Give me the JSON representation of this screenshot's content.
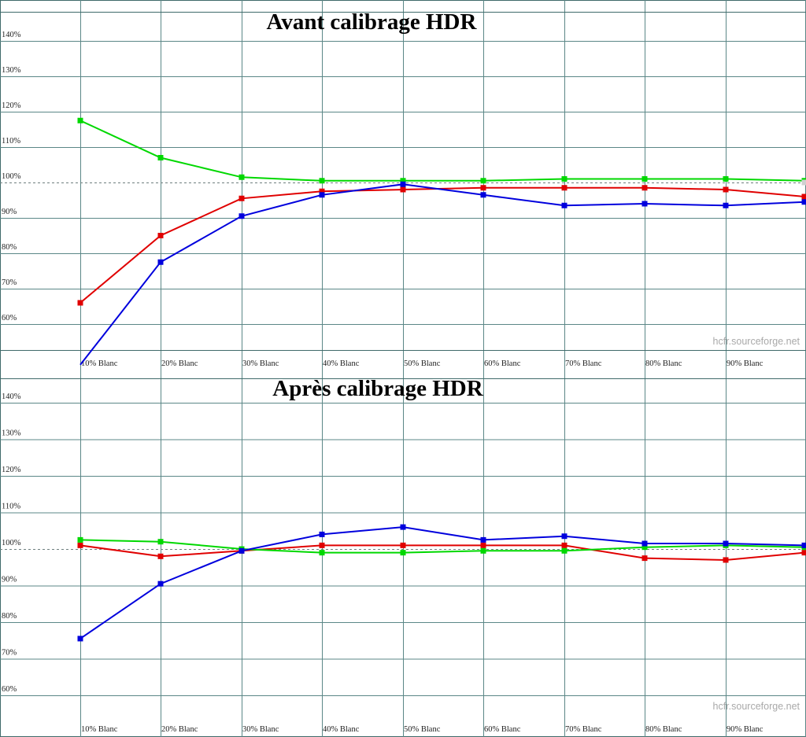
{
  "page": {
    "watermark": "hcfr.sourceforge.net",
    "background": "#ffffff"
  },
  "colors": {
    "red": "#e00000",
    "green": "#00d800",
    "blue": "#0000dd",
    "grid": "#5b8787",
    "border": "#3f6a6a",
    "reference_dash": "#6f7f7f",
    "tick_label": "#222222",
    "title": "#000000",
    "watermark": "#a9a9a9",
    "ref_marker": "#d0d0d0"
  },
  "chart_data": [
    {
      "type": "line",
      "title": "Avant calibrage HDR",
      "x_percent": [
        10,
        20,
        30,
        40,
        50,
        60,
        70,
        80,
        90,
        100
      ],
      "x_axis_labels": [
        "10% Blanc",
        "20% Blanc",
        "30% Blanc",
        "40% Blanc",
        "50% Blanc",
        "60% Blanc",
        "70% Blanc",
        "80% Blanc",
        "90% Blanc"
      ],
      "y_tick_labels": [
        "140%",
        "130%",
        "120%",
        "110%",
        "100%",
        "90%",
        "80%",
        "70%",
        "60%"
      ],
      "y_tick_values": [
        140,
        130,
        120,
        110,
        100,
        90,
        80,
        70,
        60
      ],
      "ylim": [
        52.5,
        148.5
      ],
      "grid": true,
      "reference_line": 100,
      "legend": "none",
      "series": [
        {
          "name": "red",
          "color_key": "red",
          "values": [
            66,
            85,
            95.5,
            97.5,
            98,
            98.5,
            98.5,
            98.5,
            98,
            96
          ]
        },
        {
          "name": "green",
          "color_key": "green",
          "values": [
            117.5,
            107,
            101.5,
            100.5,
            100.5,
            100.5,
            101,
            101,
            101,
            100.5
          ]
        },
        {
          "name": "blue",
          "color_key": "blue",
          "values": [
            48.5,
            77.5,
            90.5,
            96.5,
            99.5,
            96.5,
            93.5,
            94,
            93.5,
            94.5
          ]
        }
      ]
    },
    {
      "type": "line",
      "title": "Après calibrage HDR",
      "x_percent": [
        10,
        20,
        30,
        40,
        50,
        60,
        70,
        80,
        90,
        100
      ],
      "x_axis_labels": [
        "10% Blanc",
        "20% Blanc",
        "30% Blanc",
        "40% Blanc",
        "50% Blanc",
        "60% Blanc",
        "70% Blanc",
        "80% Blanc",
        "90% Blanc"
      ],
      "y_tick_labels": [
        "140%",
        "130%",
        "120%",
        "110%",
        "100%",
        "90%",
        "80%",
        "70%",
        "60%"
      ],
      "y_tick_values": [
        140,
        130,
        120,
        110,
        100,
        90,
        80,
        70,
        60
      ],
      "ylim": [
        48.5,
        146.5
      ],
      "grid": true,
      "reference_line": 100,
      "legend": "none",
      "series": [
        {
          "name": "red",
          "color_key": "red",
          "values": [
            101,
            98,
            99.5,
            101,
            101,
            101,
            101,
            97.5,
            97,
            99
          ]
        },
        {
          "name": "green",
          "color_key": "green",
          "values": [
            102.5,
            102,
            100,
            99,
            99,
            99.5,
            99.5,
            100.5,
            101,
            100.5
          ]
        },
        {
          "name": "blue",
          "color_key": "blue",
          "values": [
            75.5,
            90.5,
            99.5,
            104,
            106,
            102.5,
            103.5,
            101.5,
            101.5,
            101
          ]
        }
      ]
    }
  ]
}
